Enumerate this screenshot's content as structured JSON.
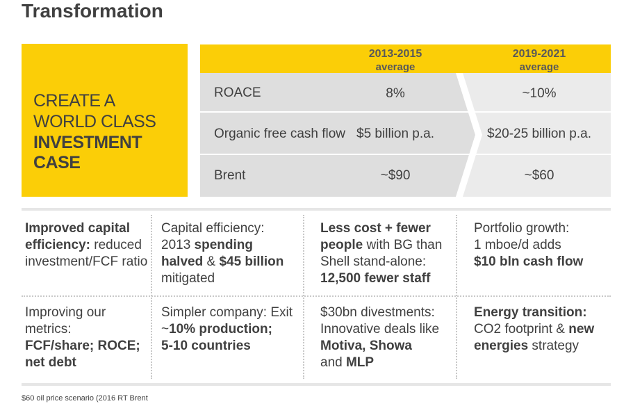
{
  "title": "Transformation",
  "callout": {
    "line1": "CREATE A",
    "line2": "WORLD CLASS",
    "line3": "INVESTMENT CASE"
  },
  "table": {
    "col1": {
      "line1": "2013-2015",
      "line2": "average"
    },
    "col2": {
      "line1": "2019-2021",
      "line2": "average"
    },
    "rows": [
      {
        "label": "ROACE",
        "v1": "8%",
        "v2": "~10%"
      },
      {
        "label": "Organic free cash flow",
        "v1": "$5 billion p.a.",
        "v2": "$20-25 billion p.a."
      },
      {
        "label": "Brent",
        "v1": "~$90",
        "v2": "~$60"
      }
    ]
  },
  "grid": {
    "c1": {
      "b1": "Improved capital",
      "b2": "efficiency:",
      "t2": " reduced",
      "t3": "investment/FCF ratio"
    },
    "c2": {
      "t1": "Capital efficiency:",
      "t2a": "2013 ",
      "b2": "spending",
      "b3a": "halved",
      "t3b": " & ",
      "b3c": "$45 billion",
      "t4": "mitigated"
    },
    "c3": {
      "b1": "Less cost + fewer",
      "b2": "people",
      "t2": " with BG than",
      "t3": "Shell stand-alone:",
      "b4": "12,500 fewer staff"
    },
    "c4": {
      "t1": "Portfolio growth:",
      "t2": "1 mboe/d adds",
      "b3": "$10 bln cash flow"
    },
    "c5": {
      "t1": "Improving our",
      "t2": "metrics:",
      "b3": "FCF/share; ROCE;",
      "b4": "net debt"
    },
    "c6": {
      "t1": "Simpler company: Exit",
      "t2a": "~",
      "b2": "10% production;",
      "b3": "5-10 countries"
    },
    "c7": {
      "t1": "$30bn divestments:",
      "t2": "Innovative deals like",
      "b3": "Motiva, Showa",
      "t4a": "and ",
      "b4": "MLP"
    },
    "c8": {
      "b1": "Energy transition:",
      "t2": "CO2 footprint & ",
      "b2": "new",
      "b3": "energies",
      "t3": " strategy"
    }
  },
  "footnote": "$60 oil price scenario (2016 RT Brent",
  "colors": {
    "accent": "#fbce07",
    "text": "#404040",
    "table_bg": "#ebebeb"
  }
}
